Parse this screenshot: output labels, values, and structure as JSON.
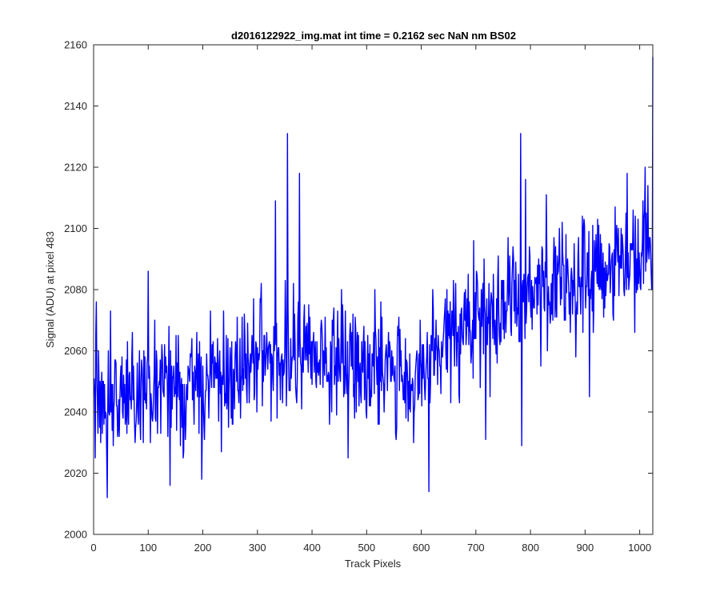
{
  "chart_data": {
    "type": "line",
    "title": "d2016122922_img.mat int time = 0.2162 sec  NaN nm BS02",
    "xlabel": "Track Pixels",
    "ylabel": "Signal (ADU) at pixel 483",
    "xlim": [
      0,
      1024
    ],
    "ylim": [
      2000,
      2160
    ],
    "xticks": [
      0,
      100,
      200,
      300,
      400,
      500,
      600,
      700,
      800,
      900,
      1000
    ],
    "yticks": [
      2000,
      2020,
      2040,
      2060,
      2080,
      2100,
      2120,
      2140,
      2160
    ],
    "grid": false,
    "line_color": "#0000ff",
    "series": [
      {
        "x_start": 1,
        "x_step": 1,
        "count": 1024,
        "trend": [
          [
            0,
            2044
          ],
          [
            100,
            2047
          ],
          [
            200,
            2049
          ],
          [
            300,
            2057
          ],
          [
            400,
            2058
          ],
          [
            500,
            2057
          ],
          [
            600,
            2050
          ],
          [
            650,
            2065
          ],
          [
            700,
            2070
          ],
          [
            800,
            2080
          ],
          [
            900,
            2084
          ],
          [
            1000,
            2094
          ],
          [
            1024,
            2097
          ]
        ],
        "noise_sd": 9.5,
        "extremes": [
          {
            "x": 3,
            "y": 2025
          },
          {
            "x": 5,
            "y": 2076
          },
          {
            "x": 25,
            "y": 2012
          },
          {
            "x": 31,
            "y": 2073
          },
          {
            "x": 100,
            "y": 2086
          },
          {
            "x": 140,
            "y": 2016
          },
          {
            "x": 198,
            "y": 2018
          },
          {
            "x": 214,
            "y": 2073
          },
          {
            "x": 333,
            "y": 2109
          },
          {
            "x": 355,
            "y": 2131
          },
          {
            "x": 377,
            "y": 2118
          },
          {
            "x": 580,
            "y": 2040
          },
          {
            "x": 614,
            "y": 2014
          },
          {
            "x": 718,
            "y": 2031
          },
          {
            "x": 782,
            "y": 2131
          },
          {
            "x": 784,
            "y": 2029
          },
          {
            "x": 791,
            "y": 2116
          },
          {
            "x": 908,
            "y": 2045
          },
          {
            "x": 977,
            "y": 2118
          },
          {
            "x": 1010,
            "y": 2120
          },
          {
            "x": 1022,
            "y": 2080
          },
          {
            "x": 1024,
            "y": 2156
          }
        ]
      }
    ]
  }
}
